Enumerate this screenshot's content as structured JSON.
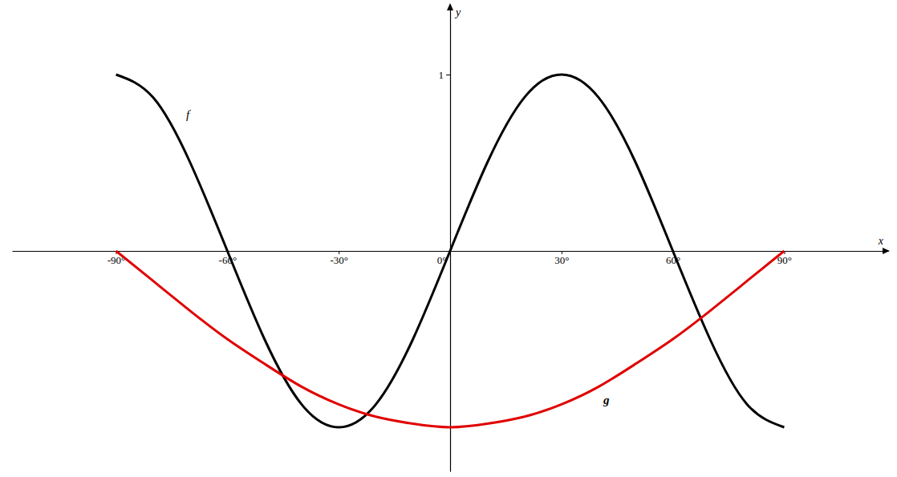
{
  "chart_data": {
    "type": "line",
    "x": [
      -90,
      -80,
      -70,
      -60,
      -50,
      -40,
      -30,
      -20,
      -10,
      0,
      10,
      20,
      30,
      40,
      50,
      60,
      70,
      80,
      90
    ],
    "series": [
      {
        "name": "f",
        "color": "#000000",
        "values": [
          1,
          0.87,
          0.5,
          0,
          -0.5,
          -0.87,
          -1,
          -0.87,
          -0.5,
          0,
          0.5,
          0.87,
          1,
          0.87,
          0.5,
          0,
          -0.5,
          -0.87,
          -1
        ]
      },
      {
        "name": "g",
        "color": "#e00000",
        "values": [
          0,
          -0.17,
          -0.34,
          -0.5,
          -0.64,
          -0.77,
          -0.87,
          -0.94,
          -0.98,
          -1,
          -0.98,
          -0.94,
          -0.87,
          -0.77,
          -0.64,
          -0.5,
          -0.34,
          -0.17,
          0
        ]
      }
    ],
    "xlim": [
      -118,
      118
    ],
    "ylim": [
      -1.25,
      1.4
    ],
    "xticks": [
      {
        "value": -90,
        "label": "-90°"
      },
      {
        "value": -60,
        "label": "-60°"
      },
      {
        "value": -30,
        "label": "-30°"
      },
      {
        "value": 0,
        "label": "0°"
      },
      {
        "value": 30,
        "label": "30°"
      },
      {
        "value": 60,
        "label": "60°"
      },
      {
        "value": 90,
        "label": "90°"
      }
    ],
    "yticks": [
      1
    ],
    "xlabel": "x",
    "ylabel": "y",
    "grid": false
  }
}
